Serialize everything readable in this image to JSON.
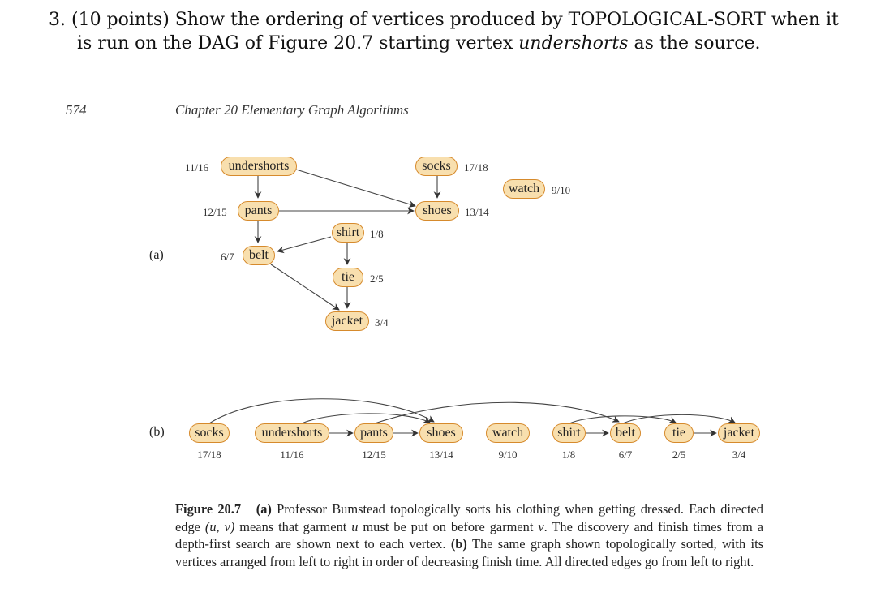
{
  "question": {
    "line1": "3. (10 points) Show the ordering of vertices produced by TOPOLOGICAL-SORT when it",
    "line2_pre": "is run on the DAG of Figure 20.7 starting vertex ",
    "line2_em": "undershorts",
    "line2_post": " as the source."
  },
  "page": {
    "number": "574",
    "chapter": "Chapter 20   Elementary Graph Algorithms"
  },
  "figure": {
    "label_a": "(a)",
    "label_b": "(b)",
    "nodes": {
      "undershorts": {
        "label": "undershorts",
        "time": "11/16"
      },
      "socks": {
        "label": "socks",
        "time": "17/18"
      },
      "watch": {
        "label": "watch",
        "time": "9/10"
      },
      "pants": {
        "label": "pants",
        "time": "12/15"
      },
      "shoes": {
        "label": "shoes",
        "time": "13/14"
      },
      "shirt": {
        "label": "shirt",
        "time": "1/8"
      },
      "belt": {
        "label": "belt",
        "time": "6/7"
      },
      "tie": {
        "label": "tie",
        "time": "2/5"
      },
      "jacket": {
        "label": "jacket",
        "time": "3/4"
      }
    },
    "sorted_order": [
      {
        "label": "socks",
        "time": "17/18"
      },
      {
        "label": "undershorts",
        "time": "11/16"
      },
      {
        "label": "pants",
        "time": "12/15"
      },
      {
        "label": "shoes",
        "time": "13/14"
      },
      {
        "label": "watch",
        "time": "9/10"
      },
      {
        "label": "shirt",
        "time": "1/8"
      },
      {
        "label": "belt",
        "time": "6/7"
      },
      {
        "label": "tie",
        "time": "2/5"
      },
      {
        "label": "jacket",
        "time": "3/4"
      }
    ],
    "edges": [
      [
        "undershorts",
        "pants"
      ],
      [
        "undershorts",
        "shoes"
      ],
      [
        "socks",
        "shoes"
      ],
      [
        "pants",
        "shoes"
      ],
      [
        "pants",
        "belt"
      ],
      [
        "shirt",
        "belt"
      ],
      [
        "shirt",
        "tie"
      ],
      [
        "tie",
        "jacket"
      ],
      [
        "belt",
        "jacket"
      ]
    ],
    "caption": {
      "title": "Figure 20.7",
      "a_label": "(a)",
      "a_text_1": " Professor Bumstead topologically sorts his clothing when getting dressed. Each directed edge ",
      "edge_notation": "(u, v)",
      "a_text_2": " means that garment ",
      "var_u": "u",
      "a_text_3": " must be put on before garment ",
      "var_v": "v",
      "a_text_4": ". The discovery and finish times from a depth-first search are shown next to each vertex. ",
      "b_label": "(b)",
      "b_text": " The same graph shown topologically sorted, with its vertices arranged from left to right in order of decreasing finish time. All directed edges go from left to right."
    }
  }
}
